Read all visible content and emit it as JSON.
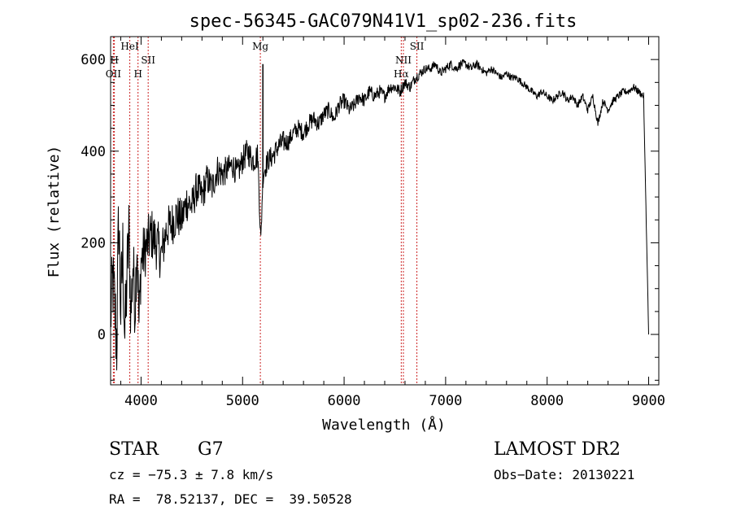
{
  "chart_data": {
    "type": "line",
    "title": "spec-56345-GAC079N41V1_sp02-236.fits",
    "xlabel": "Wavelength (Å)",
    "ylabel": "Flux (relative)",
    "xlim": [
      3700,
      9100
    ],
    "ylim": [
      -110,
      650
    ],
    "xticks": [
      4000,
      5000,
      6000,
      7000,
      8000,
      9000
    ],
    "yticks": [
      0,
      200,
      400,
      600
    ],
    "series": [
      {
        "x": [
          3700,
          3720,
          3740,
          3760,
          3780,
          3800,
          3820,
          3840,
          3860,
          3880,
          3900,
          3920,
          3940,
          3960,
          3980,
          4000,
          4050,
          4100,
          4150,
          4200,
          4250,
          4300,
          4350,
          4400,
          4450,
          4500,
          4550,
          4600,
          4650,
          4700,
          4750,
          4800,
          4850,
          4900,
          4950,
          5000,
          5050,
          5100,
          5150,
          5180,
          5200,
          5250,
          5300,
          5350,
          5400,
          5450,
          5500,
          5550,
          5600,
          5650,
          5700,
          5750,
          5800,
          5850,
          5900,
          5950,
          6000,
          6050,
          6100,
          6150,
          6200,
          6250,
          6300,
          6350,
          6400,
          6450,
          6500,
          6550,
          6600,
          6650,
          6700,
          6750,
          6800,
          6850,
          6900,
          6950,
          7000,
          7050,
          7100,
          7150,
          7200,
          7250,
          7300,
          7350,
          7400,
          7450,
          7500,
          7550,
          7600,
          7650,
          7700,
          7750,
          7800,
          7850,
          7900,
          7950,
          8000,
          8050,
          8100,
          8150,
          8200,
          8250,
          8300,
          8350,
          8400,
          8450,
          8500,
          8550,
          8600,
          8650,
          8700,
          8750,
          8800,
          8850,
          8900,
          8950,
          9000
        ],
        "y": [
          30,
          120,
          60,
          -20,
          260,
          50,
          180,
          -10,
          120,
          220,
          40,
          160,
          60,
          210,
          20,
          160,
          190,
          220,
          200,
          170,
          230,
          240,
          260,
          250,
          290,
          280,
          320,
          300,
          340,
          320,
          360,
          350,
          360,
          370,
          350,
          380,
          400,
          380,
          390,
          200,
          350,
          380,
          390,
          410,
          420,
          420,
          440,
          450,
          440,
          460,
          470,
          460,
          480,
          490,
          470,
          500,
          510,
          490,
          500,
          520,
          510,
          530,
          520,
          530,
          520,
          540,
          540,
          530,
          550,
          540,
          560,
          570,
          580,
          580,
          590,
          570,
          580,
          590,
          580,
          590,
          590,
          580,
          590,
          580,
          570,
          580,
          570,
          560,
          570,
          560,
          560,
          550,
          540,
          530,
          520,
          530,
          520,
          510,
          520,
          530,
          510,
          520,
          500,
          520,
          490,
          520,
          460,
          510,
          490,
          510,
          520,
          530,
          530,
          540,
          530,
          520,
          0
        ],
        "noise": [
          80,
          90,
          100,
          110,
          110,
          110,
          100,
          100,
          100,
          90,
          90,
          80,
          80,
          80,
          70,
          70,
          60,
          60,
          60,
          55,
          50,
          50,
          50,
          45,
          45,
          40,
          40,
          40,
          35,
          35,
          35,
          35,
          30,
          30,
          30,
          30,
          30,
          30,
          30,
          25,
          25,
          25,
          25,
          25,
          25,
          20,
          20,
          20,
          20,
          20,
          20,
          20,
          18,
          18,
          18,
          18,
          18,
          16,
          16,
          16,
          16,
          16,
          15,
          15,
          14,
          14,
          14,
          14,
          12,
          12,
          12,
          12,
          10,
          10,
          10,
          10,
          10,
          10,
          10,
          10,
          10,
          10,
          10,
          8,
          8,
          8,
          8,
          8,
          8,
          8,
          8,
          8,
          8,
          8,
          8,
          8,
          8,
          8,
          8,
          8,
          8,
          8,
          8,
          8,
          8,
          8,
          8,
          8,
          8,
          8,
          8,
          8,
          8,
          8,
          8,
          8,
          0
        ]
      }
    ],
    "line_markers": [
      {
        "label": "OII",
        "x": 3727,
        "level": 3,
        "color": "#cc2222"
      },
      {
        "label": "H",
        "x": 3737,
        "level": 2,
        "color": "#cc2222"
      },
      {
        "label": "HeI",
        "x": 3889,
        "level": 1,
        "color": "#cc2222"
      },
      {
        "label": "H",
        "x": 3970,
        "level": 3,
        "color": "#cc2222"
      },
      {
        "label": "SII",
        "x": 4070,
        "level": 2,
        "color": "#cc2222"
      },
      {
        "label": "Mg",
        "x": 5175,
        "level": 1,
        "color": "#cc2222"
      },
      {
        "label": "Hα",
        "x": 6563,
        "level": 3,
        "color": "#cc2222"
      },
      {
        "label": "NII",
        "x": 6584,
        "level": 2,
        "color": "#cc2222"
      },
      {
        "label": "SII",
        "x": 6717,
        "level": 1,
        "color": "#cc2222"
      }
    ]
  },
  "info": {
    "class": "STAR",
    "subclass": "G7",
    "survey": "LAMOST DR2",
    "cz": "cz = −75.3 ± 7.8 km/s",
    "obs_date": "Obs−Date: 20130221",
    "radec": "RA =  78.52137, DEC =  39.50528"
  }
}
